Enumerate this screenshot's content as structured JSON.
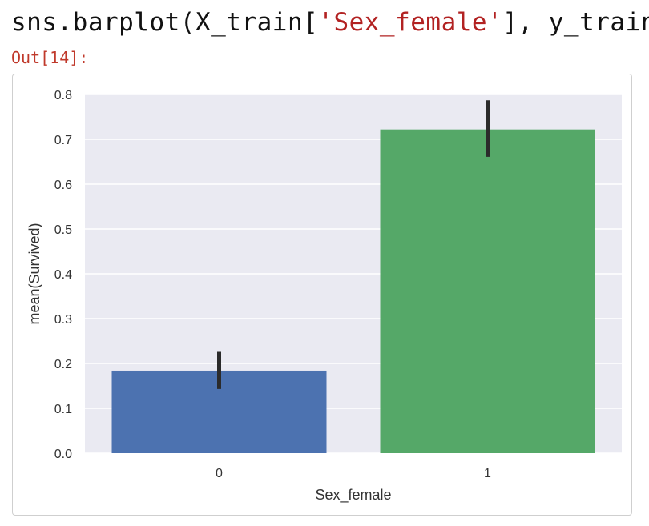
{
  "cell": {
    "code_prefix": "sns.barplot(X_train[",
    "code_string": "'Sex_female'",
    "code_suffix": "], y_train)",
    "out_prompt": "Out[14]:"
  },
  "colors": {
    "plot_background": "#eaeaf2",
    "grid": "#ffffff",
    "bar_0": "#4c72b0",
    "bar_1": "#55a868",
    "error_bar": "#2b2b2b"
  },
  "chart_data": {
    "type": "bar",
    "categories": [
      "0",
      "1"
    ],
    "values": [
      0.184,
      0.722
    ],
    "error_low": [
      0.143,
      0.661
    ],
    "error_high": [
      0.226,
      0.787
    ],
    "xlabel": "Sex_female",
    "ylabel": "mean(Survived)",
    "ylim": [
      0.0,
      0.8
    ],
    "yticks": [
      "0.0",
      "0.1",
      "0.2",
      "0.3",
      "0.4",
      "0.5",
      "0.6",
      "0.7",
      "0.8"
    ],
    "grid": true
  }
}
